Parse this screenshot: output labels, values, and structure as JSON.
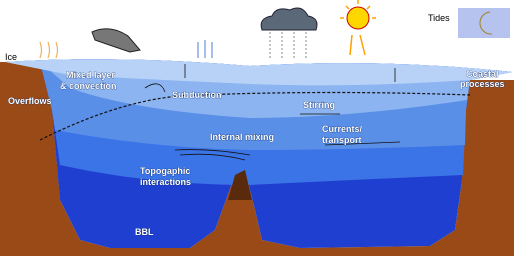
{
  "labels": {
    "tides": "Tides",
    "ice": "Ice",
    "mixed_layer": [
      "Mixed layer",
      "& convection"
    ],
    "overflows": "Overflows",
    "subduction": "Subduction",
    "stirring": "Stirring",
    "internal_mixing": "Internal mixing",
    "currents": [
      "Currents/",
      "transport"
    ],
    "topographic": [
      "Topogaphic",
      "interactions"
    ],
    "bbl": "BBL",
    "coastal": [
      "Coastal",
      "processes"
    ]
  }
}
